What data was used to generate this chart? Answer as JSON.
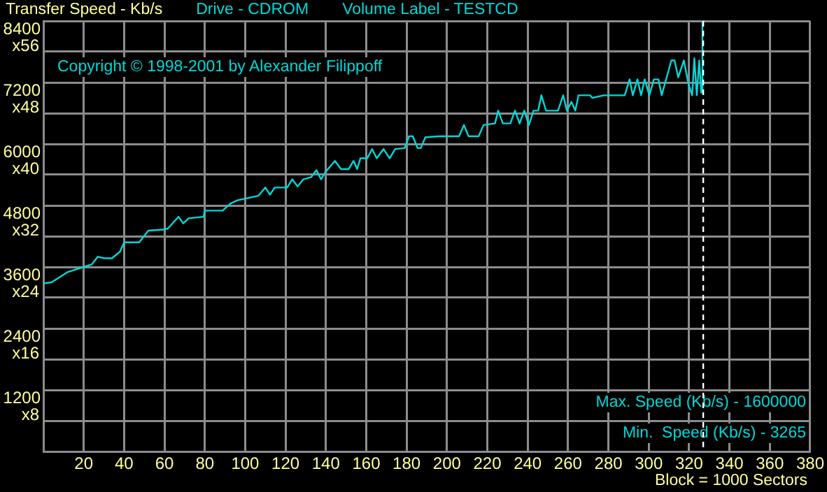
{
  "chart_data": {
    "type": "line",
    "ylabel": "Transfer Speed - Kb/s",
    "xlabel": "Block = 1000 Sectors",
    "annotations": [
      "Drive - CDROM",
      "Volume Label - TESTCD",
      "Copyright © 1998-2001 by Alexander Filippoff",
      "Max. Speed (Kb/s) - 1600000",
      "Min.  Speed (Kb/s) - 3265",
      "x8",
      "x16",
      "x24",
      "x32",
      "x40",
      "x48",
      "x56"
    ],
    "series": [
      {
        "color": "#00d8d8",
        "x": [
          0,
          4,
          8,
          12,
          16,
          20,
          24,
          27,
          30,
          34,
          38,
          40,
          47.5,
          52,
          59.4,
          61.7,
          67,
          69.3,
          72,
          79.4,
          80,
          88.8,
          92.8,
          96.2,
          106.6,
          110,
          112.3,
          114.6,
          120.8,
          123.3,
          126,
          128.8,
          132.6,
          135.3,
          137.6,
          139.9,
          144.5,
          147.5,
          151.3,
          153.7,
          155.5,
          157.1,
          160.5,
          162.9,
          165.2,
          168.6,
          171.6,
          174.3,
          179,
          181.2,
          183.1,
          185.4,
          187,
          189.3,
          196.2,
          206,
          208.4,
          210.7,
          215.7,
          218.1,
          223.8,
          225.4,
          227.7,
          231.4,
          233.7,
          236,
          238.3,
          240.6,
          242.9,
          245.2,
          246.8,
          249.1,
          255,
          257.6,
          259.4,
          261.7,
          263.6,
          265.2,
          270.9,
          272,
          277.8,
          288.1,
          290.5,
          292.1,
          294.4,
          296.2,
          298,
          300.3,
          302.5,
          304.8,
          306.4,
          311.2,
          312.8,
          314.6,
          317.4,
          319.7,
          321.5,
          322.6,
          323.8,
          325,
          326,
          326.6
        ],
        "values": [
          3280,
          3300,
          3400,
          3500,
          3550,
          3600,
          3650,
          3800,
          3770,
          3770,
          3900,
          4080,
          4080,
          4310,
          4330,
          4350,
          4580,
          4450,
          4550,
          4580,
          4700,
          4700,
          4840,
          4900,
          4990,
          5150,
          5010,
          5150,
          5150,
          5310,
          5170,
          5310,
          5350,
          5490,
          5310,
          5460,
          5670,
          5510,
          5510,
          5670,
          5510,
          5720,
          5720,
          5900,
          5720,
          5900,
          5720,
          5900,
          5920,
          6150,
          6150,
          5920,
          5920,
          6130,
          6150,
          6150,
          6370,
          6150,
          6150,
          6370,
          6400,
          6650,
          6400,
          6400,
          6650,
          6400,
          6650,
          6370,
          6650,
          6650,
          6950,
          6650,
          6650,
          6950,
          6650,
          6820,
          6650,
          6950,
          6950,
          6900,
          6950,
          6950,
          7260,
          6950,
          7260,
          6950,
          7260,
          6950,
          7260,
          7260,
          6950,
          7630,
          7630,
          7300,
          7630,
          7170,
          6950,
          7670,
          6950,
          7630,
          7000,
          8400
        ]
      }
    ],
    "xlim": [
      0,
      380
    ],
    "xticks": [
      {
        "value": 0,
        "label": null
      },
      20,
      40,
      60,
      80,
      100,
      120,
      140,
      160,
      180,
      200,
      220,
      240,
      260,
      280,
      300,
      320,
      340,
      360,
      380
    ],
    "ylim": [
      0,
      8400
    ],
    "yticks": [
      {
        "value": 0,
        "label": null
      },
      {
        "value": 600,
        "label": null
      },
      1200,
      {
        "value": 1800,
        "label": null
      },
      2400,
      {
        "value": 3000,
        "label": null
      },
      3600,
      {
        "value": 4200,
        "label": null
      },
      4800,
      {
        "value": 5400,
        "label": null
      },
      6000,
      {
        "value": 6600,
        "label": null
      },
      7200,
      {
        "value": 7800,
        "label": null
      },
      8400
    ],
    "ref_lines": [
      {
        "axis": "x",
        "value": 327,
        "color": "#ffffff",
        "line_style": "dashed"
      }
    ],
    "grid": true,
    "legend": false,
    "marker": "none",
    "line_style": "solid"
  }
}
